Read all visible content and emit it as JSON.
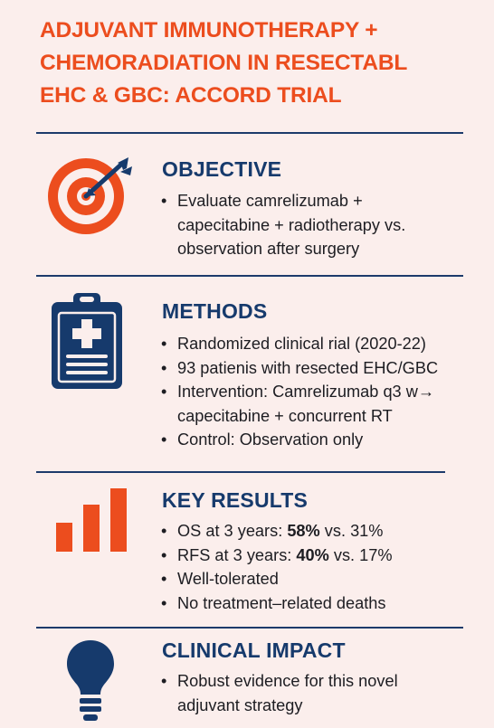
{
  "title": {
    "line1": "ADJUVANT IMMUNOTHERAPY +",
    "line2": "CHEMORADIATION IN RESECTABL",
    "line3": "EHC & GBC: ACCORD TRIAL"
  },
  "colors": {
    "accent": "#ec4d1e",
    "navy": "#163a6c",
    "background": "#fbeeec"
  },
  "objective": {
    "icon": "target-icon",
    "heading": "OBJECTIVE",
    "bullet1": {
      "line1": "Evaluate camrelizumab +",
      "line2": "capecitabine + radiotherapy vs.",
      "line3": "observation after surgery"
    }
  },
  "methods": {
    "icon": "clipboard-medical-icon",
    "heading": "METHODS",
    "bullets": [
      "Randomized clinical rial (2020-22)",
      "93 patienis with resected EHC/GBC"
    ],
    "bullet3": {
      "line1": "Intervention: Camrelizumab q3 w→",
      "line2": "capecitabine + concurrent RT"
    },
    "bullet4": "Control: Observation only"
  },
  "results": {
    "icon": "bar-chart-icon",
    "heading": "KEY RESULTS",
    "os": {
      "prefix": "OS at 3 years: ",
      "value": "58%",
      "suffix": " vs. 31%"
    },
    "rfs": {
      "prefix": "RFS at 3 years: ",
      "value": "40%",
      "suffix": " vs. 17%"
    },
    "bullet3": "Well-tolerated",
    "bullet4": "No treatment–related deaths"
  },
  "impact": {
    "icon": "lightbulb-icon",
    "heading": "CLINICAL IMPACT",
    "bullet1": {
      "line1": "Robust evidence for this novel",
      "line2": "adjuvant strategy"
    }
  }
}
